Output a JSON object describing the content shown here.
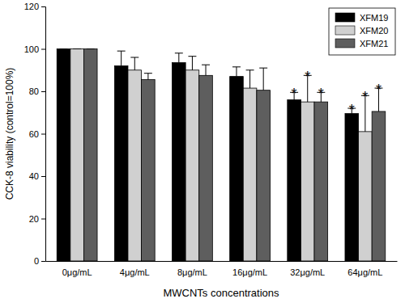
{
  "chart_data": {
    "type": "bar",
    "x_label": "MWCNTs concentrations",
    "y_label": "CCK-8 viability (control=100%)",
    "categories": [
      "0μg/mL",
      "4μg/mL",
      "8μg/mL",
      "16μg/mL",
      "32μg/mL",
      "64μg/mL"
    ],
    "series": [
      {
        "name": "XFM19",
        "color": "#000000",
        "values": [
          100,
          92,
          93.5,
          87,
          76,
          69.5
        ],
        "errors": [
          0,
          7,
          4.5,
          4.5,
          3.5,
          2.5
        ],
        "significance": [
          null,
          null,
          null,
          null,
          "*",
          "*"
        ]
      },
      {
        "name": "XFM20",
        "color": "#d0d0d0",
        "values": [
          100,
          90,
          90,
          81.5,
          75,
          61
        ],
        "errors": [
          0,
          6,
          6.5,
          8.5,
          12.5,
          17
        ],
        "significance": [
          null,
          null,
          null,
          null,
          "*",
          "*"
        ]
      },
      {
        "name": "XFM21",
        "color": "#5e5e5e",
        "values": [
          100,
          85.5,
          87.5,
          80.5,
          75,
          70.5
        ],
        "errors": [
          0,
          3,
          5,
          10.5,
          4.5,
          11
        ],
        "significance": [
          null,
          null,
          null,
          null,
          "*",
          "*"
        ]
      }
    ],
    "ylim": [
      0,
      120
    ],
    "yticks": [
      0,
      20,
      40,
      60,
      80,
      100,
      120
    ],
    "grid": false,
    "legend": "upper right"
  }
}
